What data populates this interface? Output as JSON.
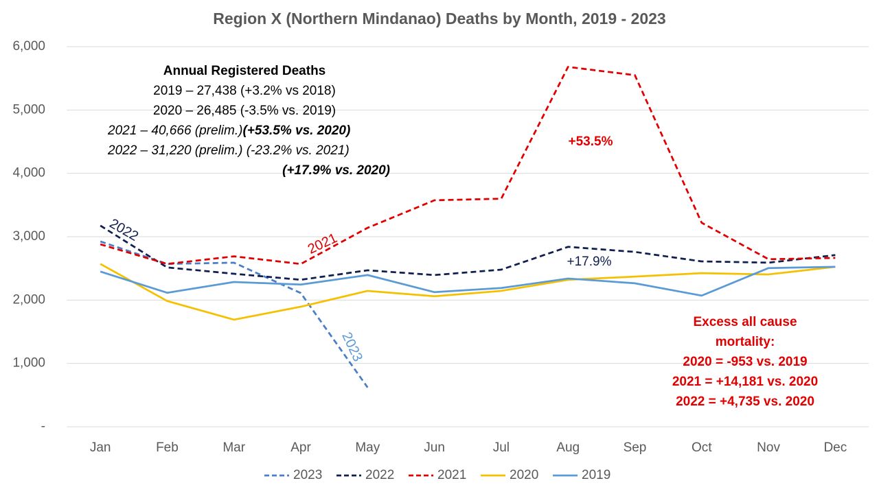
{
  "chart_data": {
    "type": "line",
    "title": "Region X (Northern Mindanao) Deaths by Month, 2019 - 2023",
    "categories": [
      "Jan",
      "Feb",
      "Mar",
      "Apr",
      "May",
      "Jun",
      "Jul",
      "Aug",
      "Sep",
      "Oct",
      "Nov",
      "Dec"
    ],
    "ylim": [
      0,
      6000
    ],
    "yticks": [
      {
        "value": 0,
        "label": "-"
      },
      {
        "value": 1000,
        "label": "1,000"
      },
      {
        "value": 2000,
        "label": "2,000"
      },
      {
        "value": 3000,
        "label": "3,000"
      },
      {
        "value": 4000,
        "label": "4,000"
      },
      {
        "value": 5000,
        "label": "5,000"
      },
      {
        "value": 6000,
        "label": "6,000"
      }
    ],
    "grid": true,
    "legend": "bottom",
    "series": [
      {
        "name": "2023",
        "color": "#4a7ec8",
        "dash": true,
        "values": [
          2925,
          2570,
          2590,
          2110,
          620,
          null,
          null,
          null,
          null,
          null,
          null,
          null
        ]
      },
      {
        "name": "2022",
        "color": "#0f1f4f",
        "dash": true,
        "values": [
          3175,
          2515,
          2415,
          2320,
          2470,
          2395,
          2480,
          2840,
          2760,
          2610,
          2590,
          2710
        ]
      },
      {
        "name": "2021",
        "color": "#e00000",
        "dash": true,
        "values": [
          2880,
          2570,
          2690,
          2570,
          3140,
          3575,
          3600,
          5680,
          5550,
          3220,
          2645,
          2665
        ]
      },
      {
        "name": "2020",
        "color": "#f5c000",
        "dash": false,
        "values": [
          2570,
          1985,
          1690,
          1895,
          2145,
          2060,
          2145,
          2320,
          2370,
          2425,
          2405,
          2525
        ]
      },
      {
        "name": "2019",
        "color": "#5b9bd5",
        "dash": false,
        "values": [
          2450,
          2115,
          2285,
          2245,
          2395,
          2125,
          2190,
          2340,
          2265,
          2070,
          2505,
          2525
        ]
      }
    ],
    "annual_notes": {
      "heading": "Annual Registered Deaths",
      "lines": [
        "2019 – 27,438 (+3.2% vs 2018)",
        "2020 – 26,485 (-3.5% vs. 2019)",
        "2021 – 40,666 (prelim.)",
        "(+53.5% vs. 2020)",
        "2022 – 31,220 (prelim.) (-23.2% vs. 2021)",
        "(+17.9% vs. 2020)"
      ]
    },
    "line_labels": [
      "2022",
      "2021",
      "2023"
    ],
    "annotations": [
      "+53.5%",
      "+17.9%"
    ],
    "excess_notes": [
      "Excess all cause",
      "mortality:",
      "2020 = -953 vs. 2019",
      "2021 = +14,181 vs. 2020",
      "2022 = +4,735 vs. 2020"
    ]
  }
}
